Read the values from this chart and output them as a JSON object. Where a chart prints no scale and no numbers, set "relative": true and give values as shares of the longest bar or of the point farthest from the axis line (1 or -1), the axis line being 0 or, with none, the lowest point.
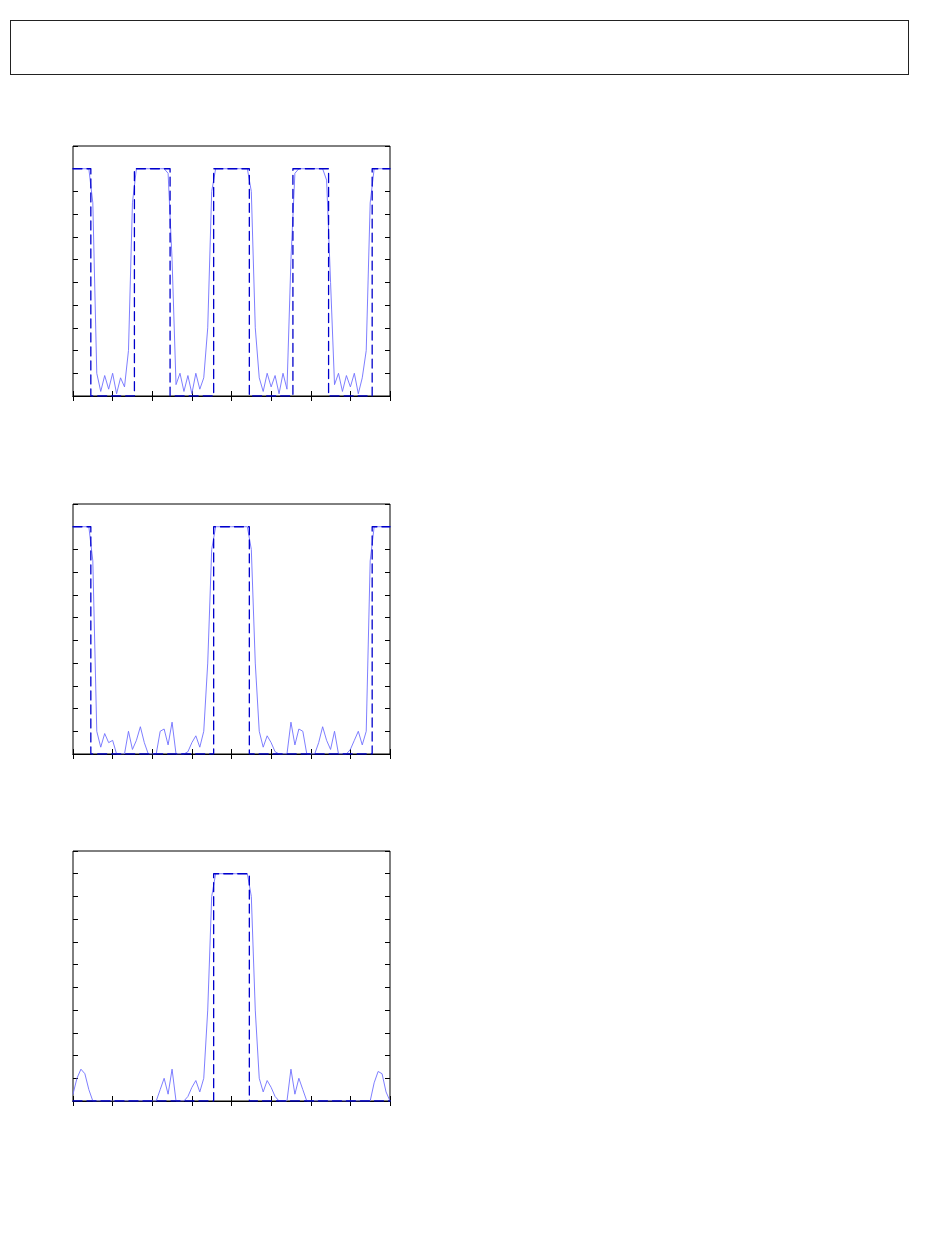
{
  "chart_data": [
    {
      "type": "line",
      "relative": true,
      "marker": "none",
      "categories": [
        null,
        null,
        null,
        null,
        null,
        null,
        null,
        null,
        null,
        null,
        null,
        null,
        null,
        null,
        null,
        null,
        null,
        null,
        null,
        null,
        null,
        null,
        null,
        null,
        null,
        null,
        null,
        null,
        null,
        null,
        null,
        null,
        null,
        null,
        null,
        null,
        null,
        null,
        null,
        null,
        null,
        null,
        null,
        null,
        null,
        null,
        null,
        null,
        null,
        null,
        null,
        null,
        null,
        null,
        null,
        null,
        null,
        null,
        null,
        null,
        null,
        null,
        null,
        null,
        null,
        null,
        null,
        null,
        null,
        null,
        null,
        null,
        null,
        null,
        null,
        null,
        null,
        null,
        null,
        null,
        null
      ],
      "series": [
        {
          "color": "#6f6fff",
          "line_style": "solid",
          "values": [
            1,
            1,
            1,
            1,
            1,
            0.85,
            0.1,
            0.02,
            0.09,
            0.03,
            0.1,
            0.01,
            0.08,
            0.04,
            0.2,
            0.85,
            1,
            1,
            1,
            1,
            1,
            1,
            1,
            1,
            0.98,
            0.6,
            0.05,
            0.1,
            0.02,
            0.09,
            0.01,
            0.1,
            0.03,
            0.08,
            0.3,
            0.9,
            1,
            1,
            1,
            1,
            1,
            1,
            1,
            1,
            1,
            0.9,
            0.3,
            0.08,
            0.02,
            0.1,
            0.04,
            0.09,
            0.01,
            0.1,
            0.03,
            0.6,
            0.98,
            1,
            1,
            1,
            1,
            1,
            1,
            1,
            0.95,
            0.5,
            0.05,
            0.1,
            0.02,
            0.09,
            0.04,
            0.1,
            0.01,
            0.08,
            0.2,
            0.85,
            1,
            1,
            1,
            1,
            1
          ]
        },
        {
          "type": "step",
          "color": "#0000cc",
          "line_style": "dashed",
          "values": [
            1,
            1,
            1,
            1,
            1,
            0,
            0,
            0,
            0,
            0,
            0,
            0,
            0,
            0,
            0,
            0,
            1,
            1,
            1,
            1,
            1,
            1,
            1,
            1,
            1,
            0,
            0,
            0,
            0,
            0,
            0,
            0,
            0,
            0,
            0,
            0,
            1,
            1,
            1,
            1,
            1,
            1,
            1,
            1,
            1,
            0,
            0,
            0,
            0,
            0,
            0,
            0,
            0,
            0,
            0,
            0,
            1,
            1,
            1,
            1,
            1,
            1,
            1,
            1,
            1,
            0,
            0,
            0,
            0,
            0,
            0,
            0,
            0,
            0,
            0,
            0,
            1,
            1,
            1,
            1,
            1
          ]
        }
      ]
    },
    {
      "type": "line",
      "relative": true,
      "marker": "none",
      "categories": [
        null,
        null,
        null,
        null,
        null,
        null,
        null,
        null,
        null,
        null,
        null,
        null,
        null,
        null,
        null,
        null,
        null,
        null,
        null,
        null,
        null,
        null,
        null,
        null,
        null,
        null,
        null,
        null,
        null,
        null,
        null,
        null,
        null,
        null,
        null,
        null,
        null,
        null,
        null,
        null,
        null,
        null,
        null,
        null,
        null,
        null,
        null,
        null,
        null,
        null,
        null,
        null,
        null,
        null,
        null,
        null,
        null,
        null,
        null,
        null,
        null,
        null,
        null,
        null,
        null,
        null,
        null,
        null,
        null,
        null,
        null,
        null,
        null,
        null,
        null,
        null,
        null,
        null,
        null,
        null,
        null
      ],
      "series": [
        {
          "color": "#6f6fff",
          "line_style": "solid",
          "values": [
            1,
            1,
            1,
            1,
            1,
            0.85,
            0.1,
            0.03,
            0.09,
            0.05,
            0.06,
            0,
            0,
            0,
            0.1,
            0.02,
            0.06,
            0.12,
            0.05,
            0,
            0,
            0,
            0.1,
            0.11,
            0.04,
            0.14,
            0,
            0,
            0,
            0.01,
            0.05,
            0.08,
            0.03,
            0.1,
            0.4,
            0.9,
            1,
            1,
            1,
            1,
            1,
            1,
            1,
            1,
            1,
            0.9,
            0.4,
            0.1,
            0.03,
            0.08,
            0.05,
            0.01,
            0,
            0,
            0,
            0.14,
            0.04,
            0.11,
            0.1,
            0,
            0,
            0,
            0.05,
            0.12,
            0.06,
            0.02,
            0.1,
            0,
            0,
            0,
            0.02,
            0.06,
            0.1,
            0.04,
            0.1,
            0.85,
            1,
            1,
            1,
            1,
            1
          ]
        },
        {
          "type": "step",
          "color": "#0000cc",
          "line_style": "dashed",
          "values": [
            1,
            1,
            1,
            1,
            1,
            0,
            0,
            0,
            0,
            0,
            0,
            0,
            0,
            0,
            0,
            0,
            0,
            0,
            0,
            0,
            0,
            0,
            0,
            0,
            0,
            0,
            0,
            0,
            0,
            0,
            0,
            0,
            0,
            0,
            0,
            0,
            1,
            1,
            1,
            1,
            1,
            1,
            1,
            1,
            1,
            0,
            0,
            0,
            0,
            0,
            0,
            0,
            0,
            0,
            0,
            0,
            0,
            0,
            0,
            0,
            0,
            0,
            0,
            0,
            0,
            0,
            0,
            0,
            0,
            0,
            0,
            0,
            0,
            0,
            0,
            0,
            1,
            1,
            1,
            1,
            1
          ]
        }
      ]
    },
    {
      "type": "line",
      "relative": true,
      "marker": "none",
      "categories": [
        null,
        null,
        null,
        null,
        null,
        null,
        null,
        null,
        null,
        null,
        null,
        null,
        null,
        null,
        null,
        null,
        null,
        null,
        null,
        null,
        null,
        null,
        null,
        null,
        null,
        null,
        null,
        null,
        null,
        null,
        null,
        null,
        null,
        null,
        null,
        null,
        null,
        null,
        null,
        null,
        null,
        null,
        null,
        null,
        null,
        null,
        null,
        null,
        null,
        null,
        null,
        null,
        null,
        null,
        null,
        null,
        null,
        null,
        null,
        null,
        null,
        null,
        null,
        null,
        null,
        null,
        null,
        null,
        null,
        null,
        null,
        null,
        null,
        null,
        null,
        null,
        null,
        null,
        null,
        null,
        null
      ],
      "series": [
        {
          "color": "#6f6fff",
          "line_style": "solid",
          "values": [
            0.03,
            0.1,
            0.14,
            0.12,
            0.05,
            0,
            0,
            0,
            0,
            0,
            0,
            0,
            0,
            0,
            0,
            0,
            0,
            0,
            0,
            0,
            0,
            0,
            0.05,
            0.1,
            0.03,
            0.14,
            0,
            0,
            0,
            0.02,
            0.06,
            0.09,
            0.04,
            0.1,
            0.4,
            0.9,
            1,
            1,
            1,
            1,
            1,
            1,
            1,
            1,
            1,
            0.9,
            0.4,
            0.1,
            0.04,
            0.09,
            0.06,
            0.02,
            0,
            0,
            0,
            0.14,
            0.03,
            0.1,
            0.05,
            0,
            0,
            0,
            0,
            0,
            0,
            0,
            0,
            0,
            0,
            0,
            0,
            0,
            0,
            0,
            0,
            0,
            0.08,
            0.13,
            0.12,
            0.04,
            0
          ]
        },
        {
          "type": "step",
          "color": "#0000cc",
          "line_style": "dashed",
          "values": [
            0,
            0,
            0,
            0,
            0,
            0,
            0,
            0,
            0,
            0,
            0,
            0,
            0,
            0,
            0,
            0,
            0,
            0,
            0,
            0,
            0,
            0,
            0,
            0,
            0,
            0,
            0,
            0,
            0,
            0,
            0,
            0,
            0,
            0,
            0,
            0,
            1,
            1,
            1,
            1,
            1,
            1,
            1,
            1,
            1,
            0,
            0,
            0,
            0,
            0,
            0,
            0,
            0,
            0,
            0,
            0,
            0,
            0,
            0,
            0,
            0,
            0,
            0,
            0,
            0,
            0,
            0,
            0,
            0,
            0,
            0,
            0,
            0,
            0,
            0,
            0,
            0,
            0,
            0,
            0,
            0
          ]
        }
      ]
    }
  ]
}
